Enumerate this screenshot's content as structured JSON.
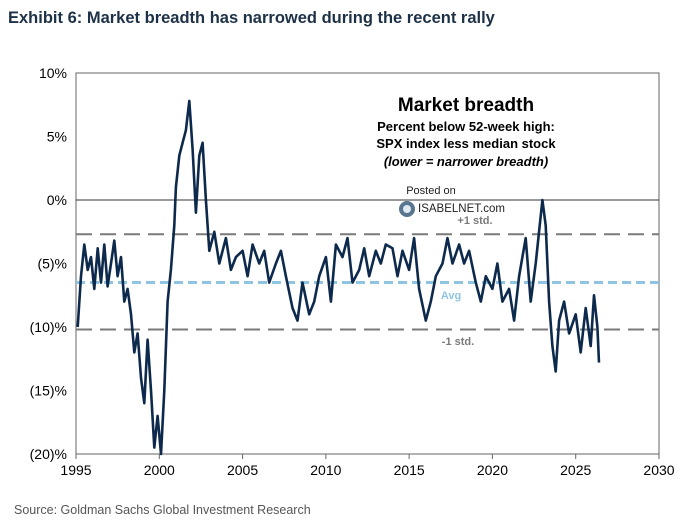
{
  "exhibit_title": "Exhibit 6: Market breadth has narrowed during the recent rally",
  "source": "Source: Goldman Sachs Global Investment Research",
  "watermark": {
    "line1": "Posted on",
    "line2": "ISABELNET.com"
  },
  "colors": {
    "series": "#0d2a4d",
    "avg": "#8fc4e3",
    "std": "#7a7a7a",
    "title": "#1d3147"
  },
  "chart_data": {
    "type": "line",
    "title": "Market breadth",
    "subtitle_lines": [
      "Percent below 52-week high:",
      "SPX index less median stock",
      "(lower = narrower breadth)"
    ],
    "xlim": [
      1995,
      2030
    ],
    "ylim": [
      -20,
      10
    ],
    "x_ticks": [
      1995,
      2000,
      2005,
      2010,
      2015,
      2020,
      2025,
      2030
    ],
    "x_tick_labels": [
      "1995",
      "2000",
      "2005",
      "2010",
      "2015",
      "2020",
      "2025",
      "2030"
    ],
    "y_ticks": [
      10,
      5,
      0,
      -5,
      -10,
      -15,
      -20
    ],
    "y_tick_labels": [
      "10%",
      "5%",
      "0%",
      "(5)%",
      "(10)%",
      "(15)%",
      "(20)%"
    ],
    "grid": false,
    "reference_lines": [
      {
        "label": "+1 std.",
        "y": -2.7,
        "style": "dashed-gray"
      },
      {
        "label": "Avg",
        "y": -6.5,
        "style": "dashed-lightblue"
      },
      {
        "label": "-1 std.",
        "y": -10.2,
        "style": "dashed-gray"
      }
    ],
    "series": [
      {
        "x": [
          1995.1,
          1995.3,
          1995.5,
          1995.7,
          1995.9,
          1996.1,
          1996.3,
          1996.5,
          1996.7,
          1996.9,
          1997.1,
          1997.3,
          1997.5,
          1997.7,
          1997.9,
          1998.1,
          1998.3,
          1998.5,
          1998.7,
          1998.9,
          1999.1,
          1999.3,
          1999.5,
          1999.7,
          1999.9,
          2000.1,
          2000.3,
          2000.5,
          2000.7,
          2000.9,
          2001.0,
          2001.2,
          2001.4,
          2001.6,
          2001.8,
          2002.0,
          2002.2,
          2002.4,
          2002.6,
          2002.8,
          2003.0,
          2003.3,
          2003.6,
          2004.0,
          2004.3,
          2004.6,
          2005.0,
          2005.3,
          2005.6,
          2006.0,
          2006.3,
          2006.6,
          2007.0,
          2007.3,
          2007.6,
          2008.0,
          2008.3,
          2008.6,
          2009.0,
          2009.3,
          2009.6,
          2010.0,
          2010.3,
          2010.6,
          2011.0,
          2011.3,
          2011.6,
          2012.0,
          2012.3,
          2012.6,
          2013.0,
          2013.3,
          2013.6,
          2014.0,
          2014.3,
          2014.6,
          2015.0,
          2015.3,
          2015.6,
          2016.0,
          2016.3,
          2016.6,
          2017.0,
          2017.3,
          2017.6,
          2018.0,
          2018.3,
          2018.6,
          2019.0,
          2019.3,
          2019.6,
          2020.0,
          2020.3,
          2020.6,
          2021.0,
          2021.3,
          2021.6,
          2022.0,
          2022.3,
          2022.6,
          2023.0,
          2023.2,
          2023.4,
          2023.6,
          2023.8,
          2024.0,
          2024.3,
          2024.6,
          2025.0,
          2025.3,
          2025.6,
          2025.9,
          2026.1,
          2026.3,
          2026.4
        ],
        "y": [
          -10.0,
          -6.0,
          -3.5,
          -5.5,
          -4.5,
          -7.0,
          -3.8,
          -6.5,
          -3.5,
          -6.8,
          -5.0,
          -3.2,
          -6.0,
          -4.5,
          -8.0,
          -7.0,
          -9.0,
          -12.0,
          -10.5,
          -14.0,
          -16.0,
          -11.0,
          -15.0,
          -19.5,
          -17.0,
          -20.0,
          -15.0,
          -8.0,
          -5.5,
          -2.0,
          1.0,
          3.5,
          4.5,
          5.5,
          7.8,
          4.0,
          -1.0,
          3.5,
          4.5,
          0.0,
          -4.0,
          -2.5,
          -5.0,
          -3.0,
          -5.5,
          -4.5,
          -4.0,
          -6.0,
          -3.5,
          -5.0,
          -4.0,
          -6.5,
          -5.0,
          -4.0,
          -6.0,
          -8.5,
          -9.5,
          -6.5,
          -9.0,
          -8.0,
          -6.0,
          -4.5,
          -8.0,
          -3.5,
          -4.5,
          -3.0,
          -6.5,
          -5.5,
          -3.8,
          -6.0,
          -4.0,
          -5.0,
          -3.5,
          -3.8,
          -6.0,
          -4.0,
          -5.5,
          -3.0,
          -7.0,
          -9.5,
          -8.0,
          -6.0,
          -5.0,
          -3.0,
          -5.0,
          -3.5,
          -5.0,
          -4.0,
          -6.5,
          -8.0,
          -6.0,
          -7.0,
          -5.0,
          -8.0,
          -7.0,
          -9.5,
          -6.0,
          -3.0,
          -8.0,
          -5.0,
          0.0,
          -2.0,
          -8.0,
          -11.5,
          -13.5,
          -9.5,
          -8.0,
          -10.5,
          -9.0,
          -12.0,
          -8.5,
          -11.5,
          -7.5,
          -10.0,
          -12.8
        ]
      }
    ]
  }
}
